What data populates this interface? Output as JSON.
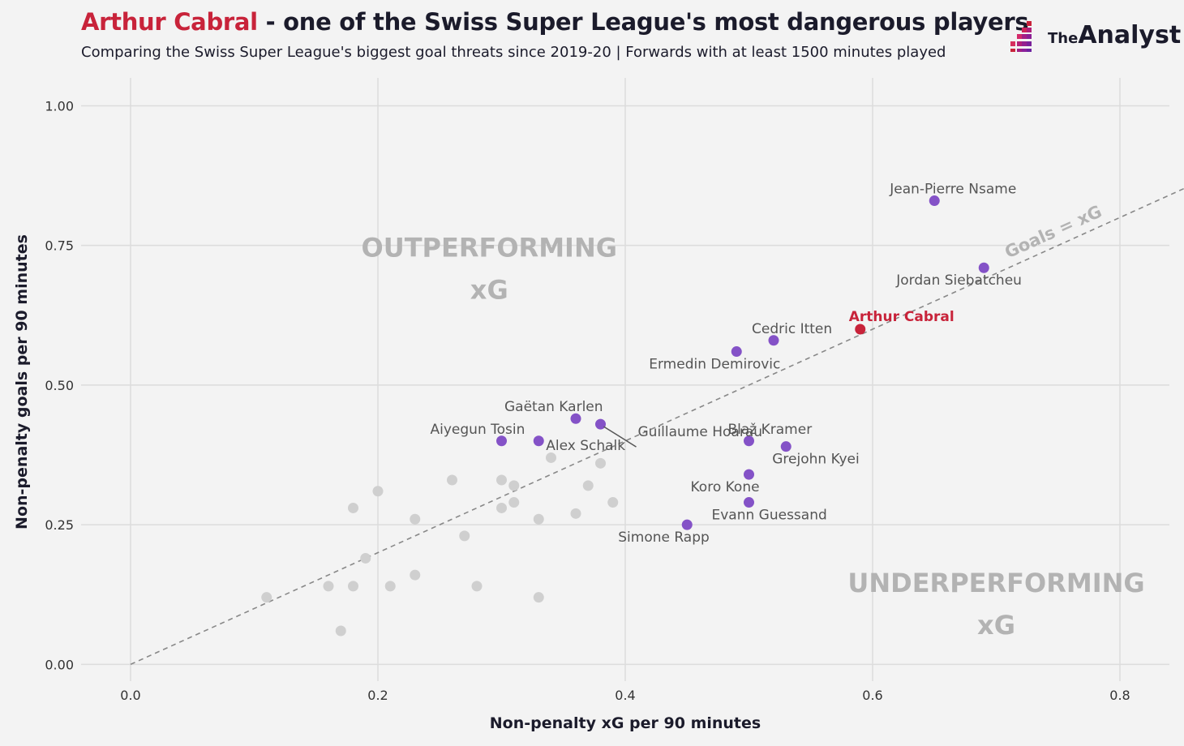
{
  "header": {
    "title_highlight": "Arthur Cabral",
    "title_rest": " - one of the Swiss Super League's most dangerous players",
    "subtitle": "Comparing the Swiss Super League's biggest goal threats since 2019-20 | Forwards with at least 1500 minutes played"
  },
  "logo": {
    "the": "The",
    "name": "Analyst"
  },
  "colors": {
    "highlight": "#c8233a",
    "player": "#8452c7",
    "other": "#cfcfcf",
    "background": "#f3f3f3",
    "grid": "#dcdcdc",
    "reference_line": "#888888",
    "zone_text": "#b3b3b3"
  },
  "chart_data": {
    "type": "scatter",
    "xlabel": "Non-penalty xG per 90 minutes",
    "ylabel": "Non-penalty goals per 90 minutes",
    "xlim": [
      -0.04,
      0.84
    ],
    "ylim": [
      -0.03,
      1.05
    ],
    "xticks": [
      0.0,
      0.2,
      0.4,
      0.6,
      0.8
    ],
    "xtick_labels": [
      "0.0",
      "0.2",
      "0.4",
      "0.6",
      "0.8"
    ],
    "yticks": [
      0.0,
      0.25,
      0.5,
      0.75,
      1.0
    ],
    "ytick_labels": [
      "0.00",
      "0.25",
      "0.50",
      "0.75",
      "1.00"
    ],
    "grid": true,
    "reference_line": {
      "label": "Goals = xG",
      "slope": 1,
      "style": "dashed"
    },
    "zones": [
      {
        "line1": "OUTPERFORMING",
        "line2": "xG",
        "position": "upper-left"
      },
      {
        "line1": "UNDERPERFORMING",
        "line2": "xG",
        "position": "lower-right"
      }
    ],
    "highlighted_points": [
      {
        "name": "Arthur Cabral",
        "x": 0.59,
        "y": 0.6,
        "highlight": true
      },
      {
        "name": "Jean-Pierre Nsame",
        "x": 0.65,
        "y": 0.83
      },
      {
        "name": "Jordan Siebatcheu",
        "x": 0.69,
        "y": 0.71
      },
      {
        "name": "Cedric Itten",
        "x": 0.52,
        "y": 0.58
      },
      {
        "name": "Ermedin Demirovic",
        "x": 0.49,
        "y": 0.56
      },
      {
        "name": "Gaëtan Karlen",
        "x": 0.36,
        "y": 0.44
      },
      {
        "name": "Guillaume Hoarau",
        "x": 0.38,
        "y": 0.43
      },
      {
        "name": "Aiyegun Tosin",
        "x": 0.3,
        "y": 0.4
      },
      {
        "name": "Alex Schalk",
        "x": 0.33,
        "y": 0.4
      },
      {
        "name": "Blaž Kramer",
        "x": 0.5,
        "y": 0.4
      },
      {
        "name": "Grejohn Kyei",
        "x": 0.53,
        "y": 0.39
      },
      {
        "name": "Koro Kone",
        "x": 0.5,
        "y": 0.34
      },
      {
        "name": "Evann Guessand",
        "x": 0.5,
        "y": 0.29
      },
      {
        "name": "Simone Rapp",
        "x": 0.45,
        "y": 0.25
      }
    ],
    "other_points": [
      {
        "x": 0.34,
        "y": 0.37
      },
      {
        "x": 0.38,
        "y": 0.36
      },
      {
        "x": 0.26,
        "y": 0.33
      },
      {
        "x": 0.3,
        "y": 0.33
      },
      {
        "x": 0.31,
        "y": 0.32
      },
      {
        "x": 0.37,
        "y": 0.32
      },
      {
        "x": 0.2,
        "y": 0.31
      },
      {
        "x": 0.31,
        "y": 0.29
      },
      {
        "x": 0.39,
        "y": 0.29
      },
      {
        "x": 0.18,
        "y": 0.28
      },
      {
        "x": 0.3,
        "y": 0.28
      },
      {
        "x": 0.36,
        "y": 0.27
      },
      {
        "x": 0.23,
        "y": 0.26
      },
      {
        "x": 0.33,
        "y": 0.26
      },
      {
        "x": 0.27,
        "y": 0.23
      },
      {
        "x": 0.19,
        "y": 0.19
      },
      {
        "x": 0.23,
        "y": 0.16
      },
      {
        "x": 0.16,
        "y": 0.14
      },
      {
        "x": 0.18,
        "y": 0.14
      },
      {
        "x": 0.21,
        "y": 0.14
      },
      {
        "x": 0.28,
        "y": 0.14
      },
      {
        "x": 0.11,
        "y": 0.12
      },
      {
        "x": 0.33,
        "y": 0.12
      },
      {
        "x": 0.17,
        "y": 0.06
      }
    ]
  }
}
